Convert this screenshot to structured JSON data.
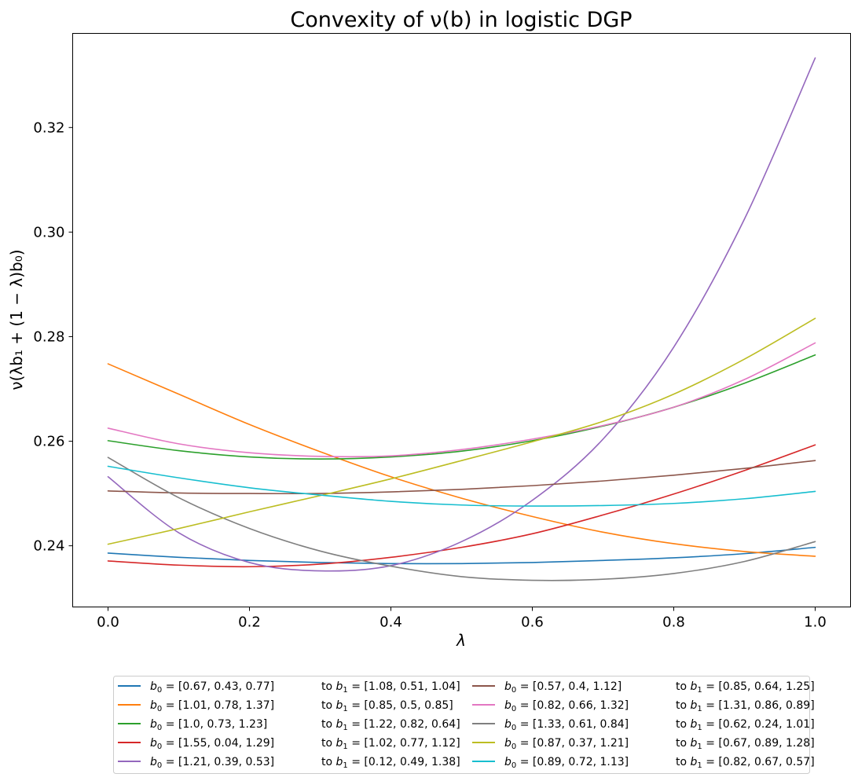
{
  "chart_data": {
    "type": "line",
    "title": "Convexity of ν(b) in logistic DGP",
    "xlabel": "λ",
    "ylabel": "ν(λb₁ + (1 − λ)b₀)",
    "xlim": [
      -0.05,
      1.05
    ],
    "ylim": [
      0.2283,
      0.338
    ],
    "xticks": [
      0.0,
      0.2,
      0.4,
      0.6,
      0.8,
      1.0
    ],
    "xtick_labels": [
      "0.0",
      "0.2",
      "0.4",
      "0.6",
      "0.8",
      "1.0"
    ],
    "yticks": [
      0.24,
      0.26,
      0.28,
      0.3,
      0.32
    ],
    "ytick_labels": [
      "0.24",
      "0.26",
      "0.28",
      "0.30",
      "0.32"
    ],
    "grid": false,
    "legend_position": "below plot, 2 columns",
    "x": [
      0.0,
      0.1,
      0.2,
      0.3,
      0.4,
      0.5,
      0.6,
      0.7,
      0.8,
      0.9,
      1.0
    ],
    "series": [
      {
        "name": "b0=[0.67, 0.43, 0.77] to b1=[1.08, 0.51, 1.04]",
        "b0": "[0.67, 0.43, 0.77]",
        "b1": "[1.08, 0.51, 1.04]",
        "color": "#1f77b4",
        "values": [
          0.2386,
          0.2378,
          0.2372,
          0.2368,
          0.2366,
          0.2366,
          0.2368,
          0.2372,
          0.2377,
          0.2385,
          0.2397
        ]
      },
      {
        "name": "b0=[1.01, 0.78, 1.37] to b1=[0.85, 0.5, 0.85]",
        "b0": "[1.01, 0.78, 1.37]",
        "b1": "[0.85, 0.5, 0.85]",
        "color": "#ff7f0e",
        "values": [
          0.2748,
          0.269,
          0.2632,
          0.258,
          0.2532,
          0.2491,
          0.2456,
          0.2426,
          0.2404,
          0.2389,
          0.238
        ]
      },
      {
        "name": "b0=[1.0, 0.73, 1.23] to b1=[1.22, 0.82, 0.64]",
        "b0": "[1.0, 0.73, 1.23]",
        "b1": "[1.22, 0.82, 0.64]",
        "color": "#2ca02c",
        "values": [
          0.2601,
          0.2582,
          0.257,
          0.2566,
          0.257,
          0.2581,
          0.2601,
          0.2629,
          0.2665,
          0.2711,
          0.2765
        ]
      },
      {
        "name": "b0=[1.55, 0.04, 1.29] to b1=[1.02, 0.77, 1.12]",
        "b0": "[1.55, 0.04, 1.29]",
        "b1": "[1.02, 0.77, 1.12]",
        "color": "#d62728",
        "values": [
          0.2371,
          0.2363,
          0.236,
          0.2365,
          0.2378,
          0.2397,
          0.2423,
          0.2459,
          0.2499,
          0.2544,
          0.2593
        ]
      },
      {
        "name": "b0=[1.21, 0.39, 0.53] to b1=[0.12, 0.49, 1.38]",
        "b0": "[1.21, 0.39, 0.53]",
        "b1": "[0.12, 0.49, 1.38]",
        "color": "#9467bd",
        "values": [
          0.2532,
          0.2425,
          0.2368,
          0.2352,
          0.2362,
          0.2408,
          0.2487,
          0.2604,
          0.278,
          0.3025,
          0.3333
        ]
      },
      {
        "name": "b0=[0.57, 0.4, 1.12] to b1=[0.85, 0.64, 1.25]",
        "b0": "[0.57, 0.4, 1.12]",
        "b1": "[0.85, 0.64, 1.25]",
        "color": "#8c564b",
        "values": [
          0.2505,
          0.2501,
          0.25,
          0.25,
          0.2503,
          0.2508,
          0.2515,
          0.2524,
          0.2535,
          0.2548,
          0.2563
        ]
      },
      {
        "name": "b0=[0.82, 0.66, 1.32] to b1=[1.31, 0.86, 0.89]",
        "b0": "[0.82, 0.66, 1.32]",
        "b1": "[1.31, 0.86, 0.89]",
        "color": "#e377c2",
        "values": [
          0.2625,
          0.2595,
          0.2578,
          0.2571,
          0.2572,
          0.2584,
          0.2604,
          0.263,
          0.2665,
          0.2718,
          0.2788
        ]
      },
      {
        "name": "b0=[1.33, 0.61, 0.84] to b1=[0.62, 0.24, 1.01]",
        "b0": "[1.33, 0.61, 0.84]",
        "b1": "[0.62, 0.24, 1.01]",
        "color": "#7f7f7f",
        "values": [
          0.2569,
          0.2492,
          0.2433,
          0.239,
          0.2361,
          0.2341,
          0.2334,
          0.2336,
          0.2347,
          0.237,
          0.2408
        ]
      },
      {
        "name": "b0=[0.87, 0.37, 1.21] to b1=[0.67, 0.89, 1.28]",
        "b0": "[0.87, 0.37, 1.21]",
        "b1": "[0.67, 0.89, 1.28]",
        "color": "#bcbd22",
        "values": [
          0.2403,
          0.2433,
          0.2465,
          0.2496,
          0.2528,
          0.2563,
          0.2599,
          0.2638,
          0.269,
          0.2757,
          0.2835
        ]
      },
      {
        "name": "b0=[0.89, 0.72, 1.13] to b1=[0.82, 0.67, 0.57]",
        "b0": "[0.89, 0.72, 1.13]",
        "b1": "[0.82, 0.67, 0.57]",
        "color": "#17becf",
        "values": [
          0.2552,
          0.253,
          0.2511,
          0.2497,
          0.2485,
          0.2478,
          0.2476,
          0.2477,
          0.2481,
          0.249,
          0.2504
        ]
      }
    ]
  }
}
